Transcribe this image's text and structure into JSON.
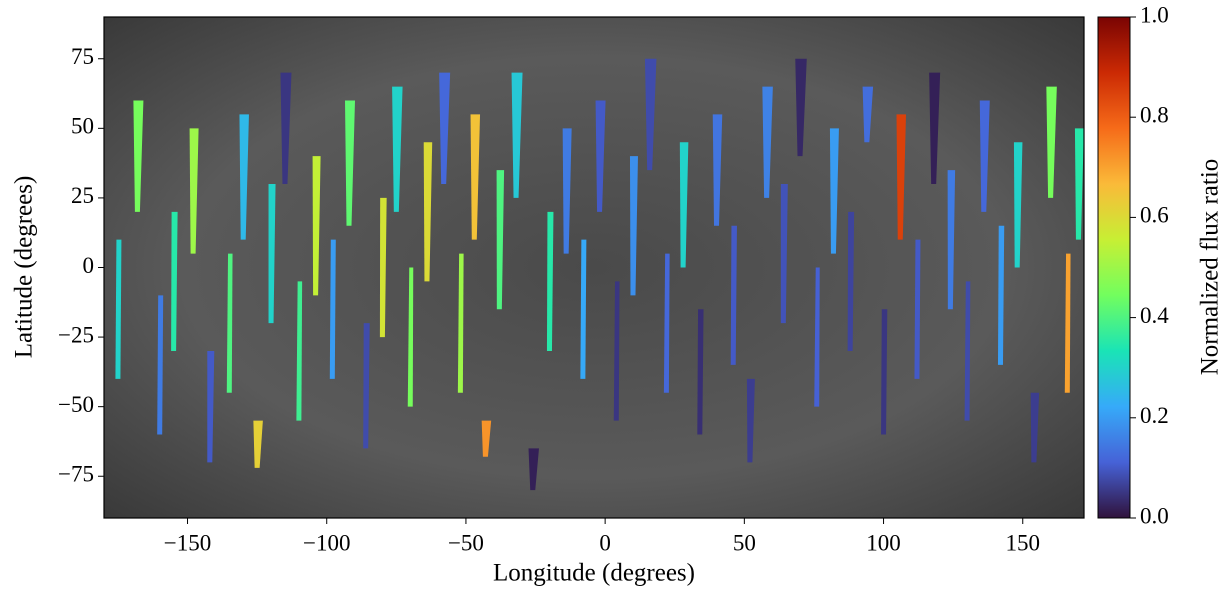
{
  "chart_data": {
    "type": "segment-map",
    "xlabel": "Longitude (degrees)",
    "ylabel": "Latitude (degrees)",
    "colorbar_label": "Normalized flux ratio",
    "xlim": [
      -180,
      172
    ],
    "ylim": [
      -90,
      90
    ],
    "xticks": [
      {
        "value": -150,
        "label": "−150"
      },
      {
        "value": -100,
        "label": "−100"
      },
      {
        "value": -50,
        "label": "−50"
      },
      0,
      50,
      100,
      150
    ],
    "yticks": [
      {
        "value": -75,
        "label": "−75"
      },
      {
        "value": -50,
        "label": "−50"
      },
      {
        "value": -25,
        "label": "−25"
      },
      0,
      25,
      50,
      75
    ],
    "clim": [
      0,
      1
    ],
    "cticks": [
      {
        "value": 0,
        "label": "0.0"
      },
      0.2,
      0.4,
      0.6,
      0.8,
      {
        "value": 1,
        "label": "1.0"
      }
    ],
    "colormap": [
      "#30123b",
      "#4662d7",
      "#36aaf9",
      "#1ae4b6",
      "#72fe5e",
      "#c7ef34",
      "#faba39",
      "#f66b19",
      "#cb2a04",
      "#7a0403"
    ],
    "segments": {
      "lon": [
        -175,
        -168,
        -160,
        -155,
        -148,
        -142,
        -135,
        -130,
        -125,
        -120,
        -115,
        -110,
        -104,
        -98,
        -92,
        -86,
        -80,
        -75,
        -70,
        -64,
        -58,
        -52,
        -47,
        -43,
        -38,
        -32,
        -26,
        -20,
        -14,
        -8,
        -2,
        4,
        10,
        16,
        22,
        28,
        34,
        40,
        46,
        52,
        58,
        64,
        70,
        76,
        82,
        88,
        94,
        100,
        106,
        112,
        118,
        124,
        130,
        136,
        142,
        148,
        154,
        160,
        166,
        170
      ],
      "lat_start": [
        -40,
        20,
        -60,
        -30,
        5,
        -70,
        -45,
        10,
        -72,
        -20,
        30,
        -55,
        -10,
        -40,
        15,
        -65,
        -25,
        20,
        -50,
        -5,
        30,
        -45,
        10,
        -68,
        -15,
        25,
        -80,
        -30,
        5,
        -40,
        20,
        -55,
        -10,
        35,
        -45,
        0,
        -60,
        15,
        -35,
        -70,
        25,
        -20,
        40,
        -50,
        5,
        -30,
        45,
        -60,
        10,
        -40,
        30,
        -15,
        -55,
        20,
        -35,
        0,
        -70,
        25,
        -45,
        10
      ],
      "lat_end": [
        10,
        60,
        -10,
        20,
        50,
        -30,
        5,
        55,
        -55,
        30,
        70,
        -5,
        40,
        10,
        60,
        -20,
        25,
        65,
        0,
        45,
        70,
        5,
        55,
        -55,
        35,
        70,
        -65,
        20,
        50,
        10,
        60,
        -5,
        40,
        75,
        5,
        45,
        -15,
        55,
        15,
        -40,
        65,
        30,
        75,
        0,
        50,
        20,
        65,
        -15,
        55,
        10,
        70,
        35,
        -5,
        60,
        15,
        45,
        -45,
        65,
        5,
        50
      ],
      "flux": [
        0.3,
        0.45,
        0.15,
        0.35,
        0.5,
        0.1,
        0.4,
        0.25,
        0.62,
        0.3,
        0.05,
        0.38,
        0.55,
        0.2,
        0.42,
        0.08,
        0.58,
        0.3,
        0.45,
        0.6,
        0.12,
        0.5,
        0.65,
        0.72,
        0.4,
        0.28,
        0.02,
        0.35,
        0.15,
        0.22,
        0.1,
        0.05,
        0.18,
        0.08,
        0.12,
        0.3,
        0.04,
        0.14,
        0.1,
        0.06,
        0.16,
        0.09,
        0.03,
        0.11,
        0.2,
        0.07,
        0.13,
        0.05,
        0.85,
        0.1,
        0.02,
        0.15,
        0.08,
        0.12,
        0.2,
        0.3,
        0.06,
        0.45,
        0.7,
        0.35
      ]
    }
  }
}
